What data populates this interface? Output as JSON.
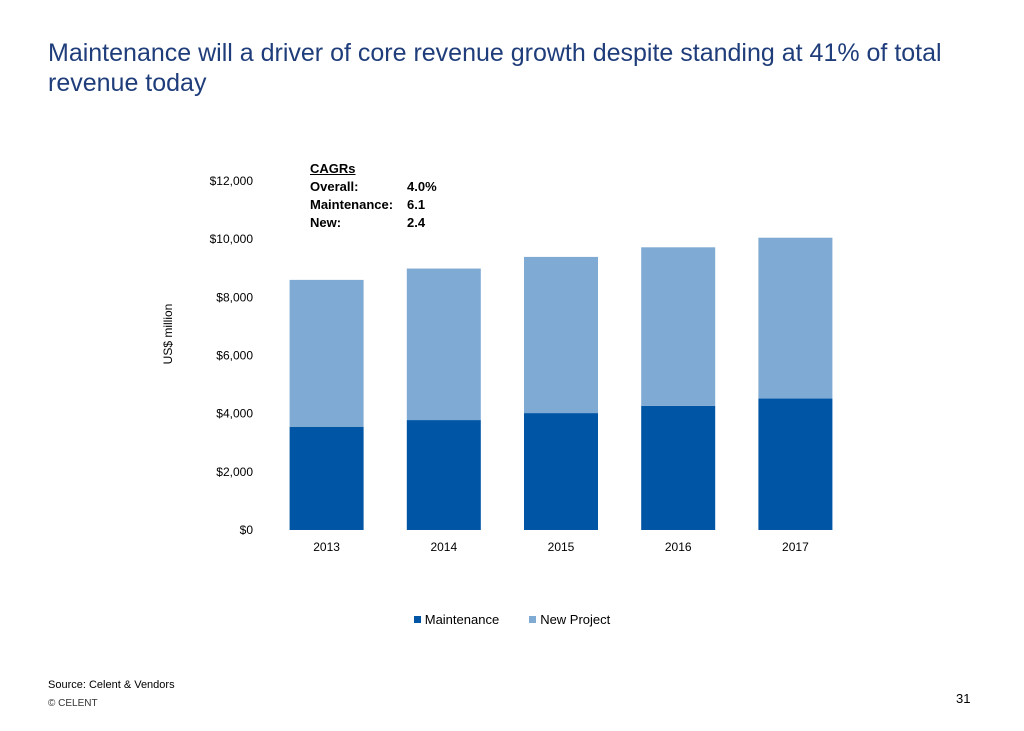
{
  "slide": {
    "title": "Maintenance will a driver of core revenue growth despite standing at 41% of total revenue today",
    "source": "Source: Celent & Vendors",
    "copyright": "© CELENT",
    "page_number": "31"
  },
  "annotation": {
    "header": "CAGRs",
    "rows": [
      {
        "label": "Overall:",
        "value": "4.0%"
      },
      {
        "label": "Maintenance:",
        "value": "6.1"
      },
      {
        "label": "New:",
        "value": "2.4"
      }
    ]
  },
  "chart_data": {
    "type": "bar",
    "stacked": true,
    "categories": [
      "2013",
      "2014",
      "2015",
      "2016",
      "2017"
    ],
    "series": [
      {
        "name": "Maintenance",
        "color": "#0055a5",
        "values": [
          3550,
          3780,
          4020,
          4270,
          4520
        ]
      },
      {
        "name": "New Project",
        "color": "#7eaad3",
        "values": [
          5050,
          5210,
          5370,
          5450,
          5530
        ]
      }
    ],
    "ylabel": "US$ million",
    "xlabel": "",
    "ylim": [
      0,
      12000
    ],
    "yticks": [
      0,
      2000,
      4000,
      6000,
      8000,
      10000,
      12000
    ],
    "ytick_labels": [
      "$0",
      "$2,000",
      "$4,000",
      "$6,000",
      "$8,000",
      "$10,000",
      "$12,000"
    ],
    "grid": false,
    "legend_position": "bottom"
  }
}
